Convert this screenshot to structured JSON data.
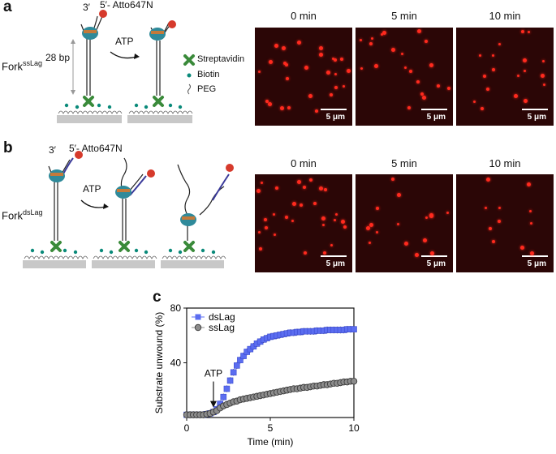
{
  "panels": {
    "a": {
      "letter": "a",
      "primer_end": "3′",
      "dye_label": "5′- Atto647N",
      "length_label": "28 bp",
      "arrow_label": "ATP",
      "fork_main": "Fork",
      "fork_sup": "ssLag",
      "legend": [
        "Streptavidin",
        "Biotin",
        "PEG"
      ],
      "time_labels": [
        "0 min",
        "5 min",
        "10 min"
      ],
      "scale_label": "5 μm"
    },
    "b": {
      "letter": "b",
      "primer_end": "3′",
      "dye_label": "5′- Atto647N",
      "arrow_label": "ATP",
      "fork_main": "Fork",
      "fork_sup": "dsLag",
      "time_labels": [
        "0 min",
        "5 min",
        "10 min"
      ],
      "scale_label": "5 μm"
    },
    "c": {
      "letter": "c",
      "arrow_label": "ATP"
    }
  },
  "chart_data": {
    "type": "scatter",
    "xlabel": "Time (min)",
    "ylabel": "Substrate unwound (%)",
    "xlim": [
      0,
      10
    ],
    "ylim": [
      0,
      80
    ],
    "xticks": [
      0,
      5,
      10
    ],
    "yticks": [
      40,
      80
    ],
    "legend_position": "top-left",
    "annotation": {
      "text": "ATP",
      "x": 1.6,
      "y": 5
    },
    "series": [
      {
        "name": "dsLag",
        "marker": "square",
        "color": "#5b6df0",
        "x": [
          0,
          0.2,
          0.4,
          0.6,
          0.8,
          1.0,
          1.2,
          1.4,
          1.6,
          1.8,
          2.0,
          2.2,
          2.4,
          2.6,
          2.8,
          3.0,
          3.2,
          3.4,
          3.6,
          3.8,
          4.0,
          4.2,
          4.4,
          4.6,
          4.8,
          5.0,
          5.2,
          5.4,
          5.6,
          5.8,
          6.0,
          6.2,
          6.4,
          6.6,
          6.8,
          7.0,
          7.2,
          7.4,
          7.6,
          7.8,
          8.0,
          8.2,
          8.4,
          8.6,
          8.8,
          9.0,
          9.2,
          9.4,
          9.6,
          9.8,
          10.0
        ],
        "y": [
          2,
          2,
          2,
          2,
          2,
          2,
          2.5,
          3,
          4,
          6,
          10,
          15,
          21,
          27,
          33,
          38,
          42,
          45,
          48,
          50,
          52,
          54,
          55.5,
          57,
          58,
          59,
          59.5,
          60,
          60.5,
          61,
          61.5,
          62,
          62,
          62.5,
          62.5,
          63,
          63,
          63,
          63,
          63.5,
          63.5,
          63.5,
          64,
          64,
          64,
          64,
          64,
          64,
          64.5,
          64.5,
          64.5
        ],
        "err": 2.5
      },
      {
        "name": "ssLag",
        "marker": "circle",
        "color": "#8c8c8c",
        "x": [
          0,
          0.2,
          0.4,
          0.6,
          0.8,
          1.0,
          1.2,
          1.4,
          1.6,
          1.8,
          2.0,
          2.2,
          2.4,
          2.6,
          2.8,
          3.0,
          3.2,
          3.4,
          3.6,
          3.8,
          4.0,
          4.2,
          4.4,
          4.6,
          4.8,
          5.0,
          5.2,
          5.4,
          5.6,
          5.8,
          6.0,
          6.2,
          6.4,
          6.6,
          6.8,
          7.0,
          7.2,
          7.4,
          7.6,
          7.8,
          8.0,
          8.2,
          8.4,
          8.6,
          8.8,
          9.0,
          9.2,
          9.4,
          9.6,
          9.8,
          10.0
        ],
        "y": [
          2,
          2,
          2,
          2,
          2,
          2,
          2.5,
          3,
          4,
          5,
          7,
          8.5,
          9.5,
          10.5,
          11.5,
          12,
          13,
          13.5,
          14,
          14.5,
          15,
          15.5,
          16,
          16.5,
          17,
          17.5,
          18,
          18.5,
          19,
          19.5,
          20,
          20.5,
          21,
          21,
          21.5,
          22,
          22,
          22.5,
          23,
          23,
          23.5,
          24,
          24,
          24.5,
          25,
          25,
          25.5,
          26,
          26,
          26.5,
          26.5
        ],
        "err": 2.5
      }
    ]
  },
  "colors": {
    "microscope_bg": "#2b0606",
    "spot": "#ff2a1e",
    "protein": "#2f8a9a",
    "dye": "#d63a2c",
    "dslag_strand": "#3a3a9a",
    "streptavidin": "#3a8a3a",
    "biotin": "#0a8a7a"
  },
  "icons": {
    "streptavidin": "green-cross-icon",
    "biotin": "teal-dot-icon",
    "peg": "squiggle-icon"
  }
}
